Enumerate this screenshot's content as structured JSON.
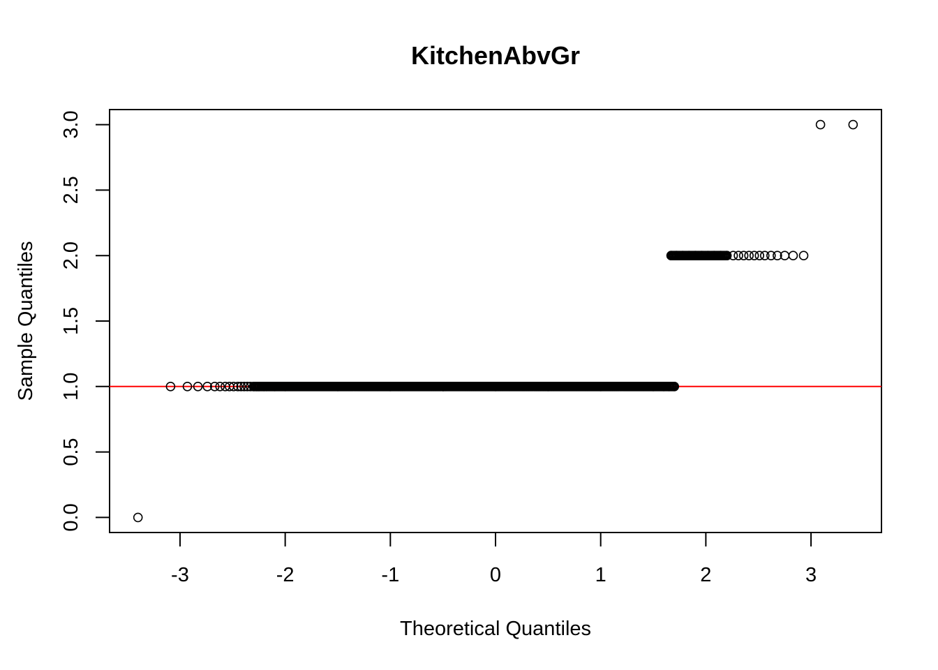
{
  "chart_data": {
    "type": "scatter",
    "title": "KitchenAbvGr",
    "xlabel": "Theoretical Quantiles",
    "ylabel": "Sample Quantiles",
    "xlim": [
      -3.67,
      3.67
    ],
    "ylim": [
      -0.115,
      3.115
    ],
    "x_ticks": [
      -3,
      -2,
      -1,
      0,
      1,
      2,
      3
    ],
    "x_tick_labels": [
      "-3",
      "-2",
      "-1",
      "0",
      "1",
      "2",
      "3"
    ],
    "y_ticks": [
      0,
      0.5,
      1,
      1.5,
      2,
      2.5,
      3
    ],
    "y_tick_labels": [
      "0.0",
      "0.5",
      "1.0",
      "1.5",
      "2.0",
      "2.5",
      "3.0"
    ],
    "grid": false,
    "point_style": "open-circle",
    "point_color": "#000000",
    "reference_line": {
      "type": "horizontal",
      "y": 1.0,
      "color": "#ff0000"
    },
    "series": [
      {
        "values_y": 0,
        "x": [
          -3.4
        ]
      },
      {
        "values_y": 1,
        "x": [
          -3.09,
          -2.93,
          -2.83,
          -2.74,
          -2.67,
          -2.62,
          -2.57,
          -2.53,
          -2.49,
          -2.45,
          -2.42,
          -2.39,
          -2.36,
          -2.33,
          -2.3,
          -2.27,
          -2.25,
          -2.2,
          -2.1,
          -2.0,
          -1.5,
          -1.0,
          -0.5,
          0,
          0.5,
          1.0,
          1.5,
          1.6,
          1.65,
          1.7
        ],
        "dense_range": [
          -2.3,
          1.7
        ]
      },
      {
        "values_y": 2,
        "x": [
          1.67,
          1.72,
          1.78,
          1.84,
          1.9,
          1.96,
          2.02,
          2.08,
          2.14,
          2.2,
          2.26,
          2.31,
          2.36,
          2.41,
          2.46,
          2.51,
          2.56,
          2.62,
          2.68,
          2.75,
          2.83,
          2.93
        ],
        "dense_range": [
          1.67,
          2.2
        ]
      },
      {
        "values_y": 3,
        "x": [
          3.09,
          3.4
        ]
      }
    ]
  }
}
